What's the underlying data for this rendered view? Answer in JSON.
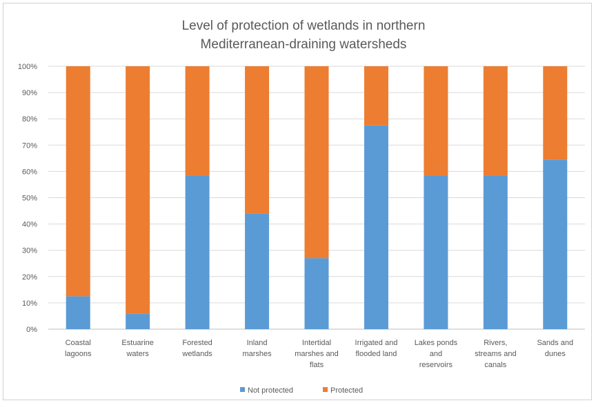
{
  "chart_data": {
    "type": "bar",
    "stacked": "percent",
    "title": "Level of protection of wetlands in northern Mediterranean-draining watersheds",
    "title_lines": [
      "Level of protection of wetlands in northern",
      "Mediterranean-draining  watersheds"
    ],
    "categories": [
      "Coastal lagoons",
      "Estuarine waters",
      "Forested wetlands",
      "Inland marshes",
      "Intertidal marshes and flats",
      "Irrigated and flooded land",
      "Lakes ponds and reservoirs",
      "Rivers, streams and canals",
      "Sands and dunes"
    ],
    "category_lines": [
      [
        "Coastal",
        "lagoons"
      ],
      [
        "Estuarine",
        "waters"
      ],
      [
        "Forested",
        "wetlands"
      ],
      [
        "Inland",
        "marshes"
      ],
      [
        "Intertidal",
        "marshes and",
        "flats"
      ],
      [
        "Irrigated and",
        "flooded land"
      ],
      [
        "Lakes ponds",
        "and",
        "reservoirs"
      ],
      [
        "Rivers,",
        "streams and",
        "canals"
      ],
      [
        "Sands and",
        "dunes"
      ]
    ],
    "series": [
      {
        "name": "Not protected",
        "color": "#5b9bd5",
        "values": [
          12.5,
          5.8,
          58.5,
          44,
          27,
          77.5,
          58.5,
          58.5,
          64.5
        ]
      },
      {
        "name": "Protected",
        "color": "#ed7d31",
        "values": [
          87.5,
          94.2,
          41.5,
          56,
          73,
          22.5,
          41.5,
          41.5,
          35.5
        ]
      }
    ],
    "ylim": [
      0,
      100
    ],
    "yticks": [
      "0%",
      "10%",
      "20%",
      "30%",
      "40%",
      "50%",
      "60%",
      "70%",
      "80%",
      "90%",
      "100%"
    ],
    "grid": true,
    "legend_position": "bottom"
  }
}
